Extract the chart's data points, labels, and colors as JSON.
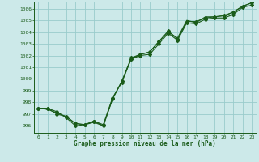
{
  "xlabel": "Graphe pression niveau de la mer (hPa)",
  "bg_color": "#cce9e9",
  "grid_color": "#99cccc",
  "line_color": "#1a5c1a",
  "x_ticks": [
    0,
    1,
    2,
    3,
    4,
    5,
    6,
    7,
    8,
    9,
    10,
    11,
    12,
    13,
    14,
    15,
    16,
    17,
    18,
    19,
    20,
    21,
    22,
    23
  ],
  "y_ticks": [
    996,
    997,
    998,
    999,
    1000,
    1001,
    1002,
    1003,
    1004,
    1005,
    1006
  ],
  "ylim": [
    995.4,
    1006.6
  ],
  "xlim": [
    -0.5,
    23.5
  ],
  "series1": [
    997.5,
    997.5,
    997.2,
    996.7,
    996.0,
    996.1,
    996.4,
    996.1,
    998.4,
    999.7,
    1001.7,
    1002.0,
    1002.1,
    1003.0,
    1003.9,
    1003.3,
    1004.8,
    1004.7,
    1005.1,
    1005.2,
    1005.2,
    1005.5,
    1006.1,
    1006.3
  ],
  "series2": [
    997.5,
    997.5,
    997.0,
    996.8,
    996.2,
    996.1,
    996.4,
    996.0,
    998.3,
    999.8,
    1001.8,
    1002.1,
    1002.3,
    1003.2,
    1004.1,
    1003.4,
    1004.9,
    1004.9,
    1005.2,
    1005.3,
    1005.4,
    1005.7,
    1006.2,
    1006.5
  ],
  "series3": [
    997.5,
    997.4,
    997.1,
    996.8,
    996.2,
    996.1,
    996.3,
    996.0,
    998.3,
    999.8,
    1001.7,
    1002.1,
    1002.3,
    1003.2,
    1004.0,
    1003.5,
    1005.0,
    1004.8,
    1005.3,
    1005.3,
    1005.4,
    1005.7,
    1006.2,
    1006.5
  ],
  "marker": "D",
  "marker_size": 2.0,
  "linewidth": 0.8
}
